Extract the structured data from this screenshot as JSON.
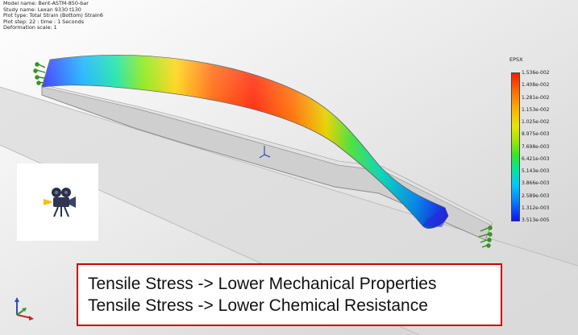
{
  "model_info": [
    "Model name: Bent-ASTM-850-bar",
    "Study name: Lexan 9330 t130",
    "Plot type: Total Strain (Bottom) Strain6",
    "Plot step: 22 : time : 1 Seconds",
    "Deformation scale: 1"
  ],
  "legend": {
    "title": "EPSX",
    "values": [
      "1.536e-002",
      "1.408e-002",
      "1.281e-002",
      "1.153e-002",
      "1.025e-002",
      "8.975e-003",
      "7.698e-003",
      "6.421e-003",
      "5.143e-003",
      "3.866e-003",
      "2.589e-003",
      "1.312e-003",
      "3.513e-005"
    ],
    "colors": [
      "#ff1a00",
      "#ff6a00",
      "#ffb000",
      "#e6e600",
      "#2ee62e",
      "#00c8ff",
      "#1010ff"
    ]
  },
  "caption": {
    "line1": "Tensile Stress -> Lower Mechanical Properties",
    "line2": "Tensile Stress -> Lower Chemical Resistance",
    "border_color": "#d00000"
  },
  "icons": {
    "video": "movie-camera-icon",
    "axis": "xyz-axis-triad-icon"
  }
}
